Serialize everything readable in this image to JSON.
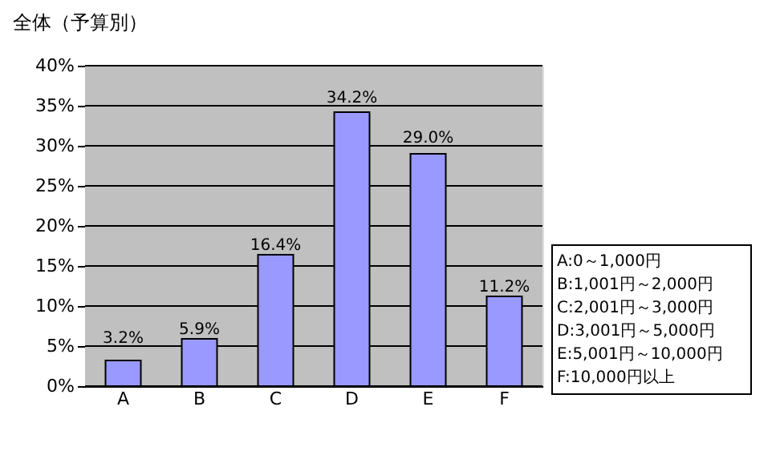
{
  "chart_data": {
    "type": "bar",
    "title": "全体（予算別）",
    "categories": [
      "A",
      "B",
      "C",
      "D",
      "E",
      "F"
    ],
    "values": [
      3.2,
      5.9,
      16.4,
      34.2,
      29.0,
      11.2
    ],
    "value_labels": [
      "3.2%",
      "5.9%",
      "16.4%",
      "34.2%",
      "29.0%",
      "11.2%"
    ],
    "color": "#9999ff",
    "ylim": [
      0,
      40
    ],
    "yticks": [
      {
        "value": 0,
        "label": "0%"
      },
      {
        "value": 5,
        "label": "5%"
      },
      {
        "value": 10,
        "label": "10%"
      },
      {
        "value": 15,
        "label": "15%"
      },
      {
        "value": 20,
        "label": "20%"
      },
      {
        "value": 25,
        "label": "25%"
      },
      {
        "value": 30,
        "label": "30%"
      },
      {
        "value": 35,
        "label": "35%"
      },
      {
        "value": 40,
        "label": "40%"
      }
    ],
    "grid": "y",
    "annotations": [
      "A:0～1,000円",
      "B:1,001円～2,000円",
      "C:2,001円～3,000円",
      "D:3,001円～5,000円",
      "E:5,001円～10,000円",
      "F:10,000円以上"
    ]
  }
}
